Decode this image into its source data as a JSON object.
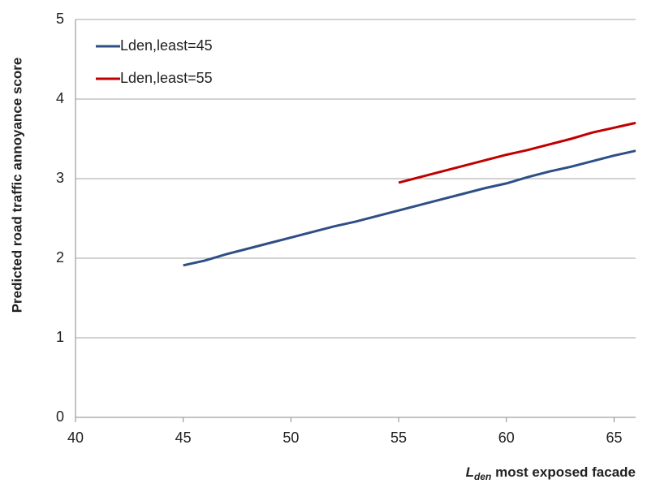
{
  "chart_data": {
    "type": "line",
    "y_label": "Predicted road traffic annoyance score",
    "x_label": {
      "main": "L",
      "sub": "den",
      "rest": " most exposed facade"
    },
    "x": [
      45,
      46,
      47,
      48,
      49,
      50,
      51,
      52,
      53,
      54,
      55,
      56,
      57,
      58,
      59,
      60,
      61,
      62,
      63,
      64,
      65,
      66
    ],
    "series": [
      {
        "name": "Lden,least=45",
        "color": "#2e4f86",
        "values": [
          1.91,
          1.97,
          2.05,
          2.12,
          2.19,
          2.26,
          2.33,
          2.4,
          2.46,
          2.53,
          2.6,
          2.67,
          2.74,
          2.81,
          2.88,
          2.94,
          3.02,
          3.09,
          3.15,
          3.22,
          3.29,
          3.35
        ]
      },
      {
        "name": "Lden,least=55",
        "color": "#c00000",
        "values": [
          null,
          null,
          null,
          null,
          null,
          null,
          null,
          null,
          null,
          null,
          2.95,
          3.02,
          3.09,
          3.16,
          3.23,
          3.3,
          3.36,
          3.43,
          3.5,
          3.58,
          3.64,
          3.7
        ]
      }
    ],
    "xlim": [
      40,
      66
    ],
    "xticks": [
      40,
      45,
      50,
      55,
      60,
      65
    ],
    "ylim": [
      0,
      5
    ],
    "yticks": [
      0,
      1,
      2,
      3,
      4,
      5
    ],
    "grid": true,
    "legend": "top-left"
  }
}
